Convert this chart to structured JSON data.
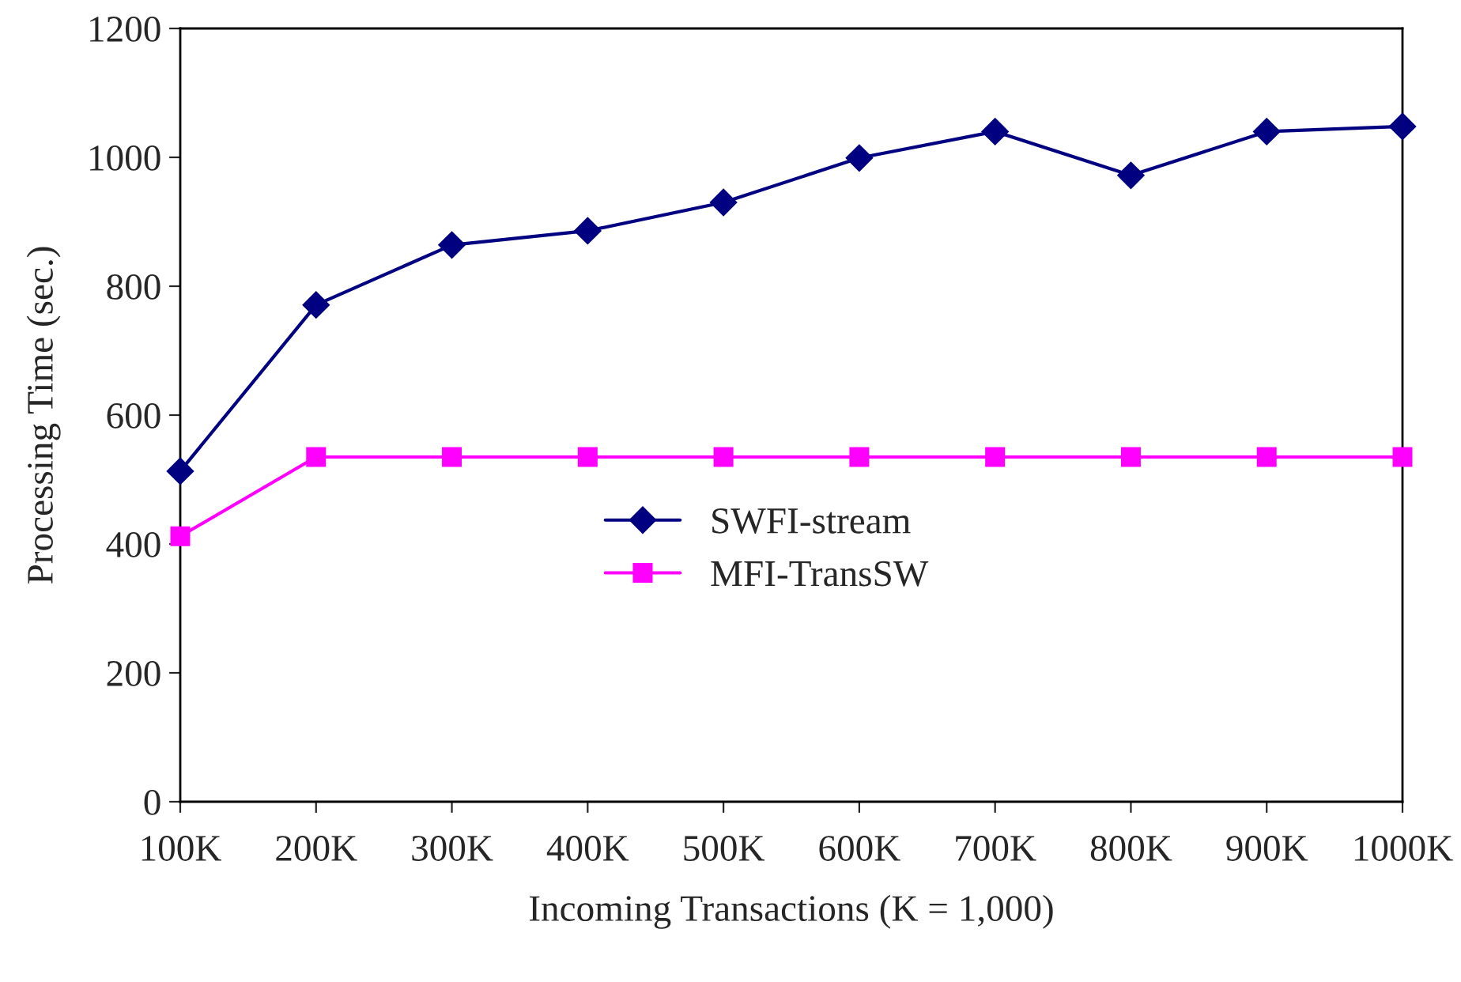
{
  "chart_data": {
    "type": "line",
    "xlabel": "Incoming Transactions (K = 1,000)",
    "ylabel": "Processing Time (sec.)",
    "categories": [
      "100K",
      "200K",
      "300K",
      "400K",
      "500K",
      "600K",
      "700K",
      "800K",
      "900K",
      "1000K"
    ],
    "series": [
      {
        "name": "SWFI-stream",
        "color": "#000080",
        "marker": "diamond",
        "values": [
          513,
          771,
          864,
          886,
          930,
          999,
          1040,
          972,
          1040,
          1048
        ]
      },
      {
        "name": "MFI-TransSW",
        "color": "#ff00ff",
        "marker": "square",
        "values": [
          412,
          535,
          535,
          535,
          535,
          535,
          535,
          535,
          535,
          535
        ]
      }
    ],
    "ylim": [
      0,
      1200
    ],
    "yticks": [
      0,
      200,
      400,
      600,
      800,
      1000,
      1200
    ],
    "grid": false,
    "legend": "center",
    "line_style": "solid"
  }
}
